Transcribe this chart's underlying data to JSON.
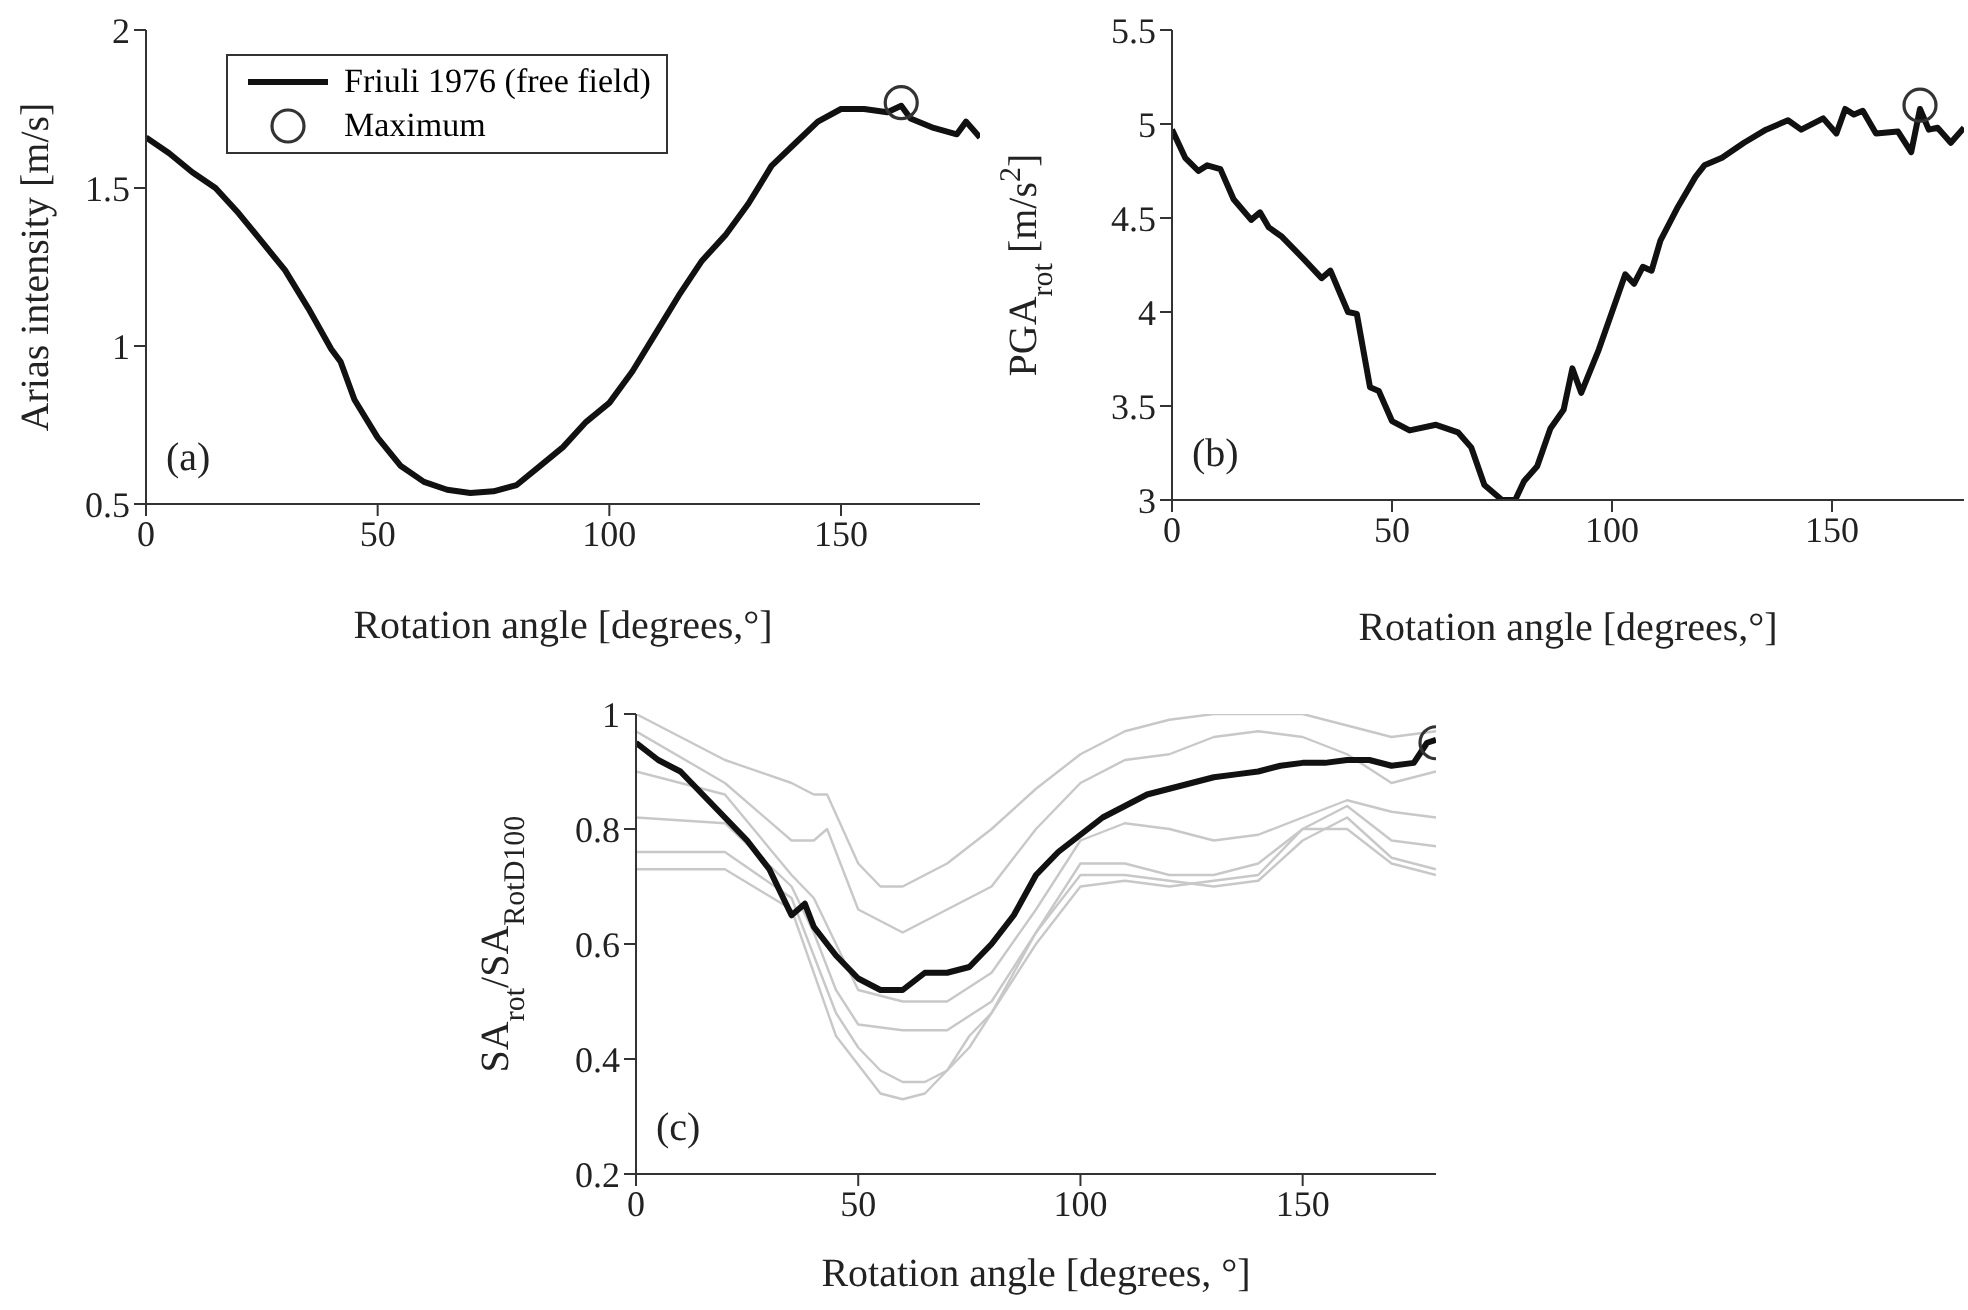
{
  "chart_data": [
    {
      "type": "line",
      "xlabel": "Rotation angle [degrees,°]",
      "ylabel": "Arias intensity [m/s]",
      "annotations": [
        "(a)"
      ],
      "xlim": [
        0,
        180
      ],
      "xticks": [
        0,
        50,
        100,
        150
      ],
      "ylim": [
        0.5,
        2
      ],
      "yticks": [
        0.5,
        1,
        1.5,
        2
      ],
      "legend": "top left",
      "grid": false,
      "series": [
        {
          "name": "Friuli 1976 (free field)",
          "color": "#111111",
          "marker": "none",
          "x": [
            0,
            5,
            10,
            15,
            20,
            25,
            30,
            35,
            40,
            42,
            45,
            50,
            55,
            60,
            65,
            70,
            75,
            80,
            85,
            90,
            95,
            100,
            105,
            110,
            115,
            120,
            125,
            130,
            135,
            140,
            145,
            150,
            155,
            160,
            163,
            165,
            170,
            175,
            177,
            180
          ],
          "values": [
            1.66,
            1.61,
            1.55,
            1.5,
            1.42,
            1.33,
            1.24,
            1.12,
            0.99,
            0.95,
            0.83,
            0.71,
            0.62,
            0.57,
            0.545,
            0.535,
            0.54,
            0.56,
            0.62,
            0.68,
            0.76,
            0.82,
            0.92,
            1.04,
            1.16,
            1.27,
            1.35,
            1.45,
            1.57,
            1.64,
            1.71,
            1.75,
            1.75,
            1.74,
            1.76,
            1.72,
            1.69,
            1.67,
            1.71,
            1.66
          ]
        },
        {
          "name": "Maximum",
          "type": "scatter",
          "marker": "circle",
          "color": "#333333",
          "x": [
            163
          ],
          "values": [
            1.77
          ]
        }
      ]
    },
    {
      "type": "line",
      "xlabel": "Rotation angle [degrees,°]",
      "ylabel": "PGA$_{rot}$ [m/s$^{2}$]",
      "annotations": [
        "(b)"
      ],
      "xlim": [
        0,
        180
      ],
      "xticks": [
        0,
        50,
        100,
        150
      ],
      "ylim": [
        3,
        5.5
      ],
      "yticks": [
        3,
        3.5,
        4,
        4.5,
        5,
        5.5
      ],
      "grid": false,
      "series": [
        {
          "color": "#111111",
          "marker": "none",
          "x": [
            0,
            3,
            6,
            8,
            11,
            14,
            18,
            20,
            22,
            25,
            30,
            34,
            36,
            40,
            42,
            45,
            47,
            50,
            54,
            60,
            65,
            68,
            71,
            75,
            78,
            80,
            83,
            86,
            89,
            91,
            93,
            97,
            100,
            103,
            105,
            107,
            109,
            111,
            115,
            119,
            121,
            125,
            130,
            135,
            140,
            143,
            148,
            151,
            153,
            155,
            157,
            160,
            165,
            168,
            170,
            172,
            174,
            177,
            180
          ],
          "values": [
            4.97,
            4.82,
            4.75,
            4.78,
            4.76,
            4.6,
            4.49,
            4.53,
            4.45,
            4.4,
            4.28,
            4.18,
            4.22,
            4.0,
            3.99,
            3.6,
            3.58,
            3.42,
            3.37,
            3.4,
            3.36,
            3.28,
            3.08,
            3.0,
            3.0,
            3.1,
            3.18,
            3.38,
            3.48,
            3.7,
            3.57,
            3.8,
            4.0,
            4.2,
            4.15,
            4.24,
            4.22,
            4.38,
            4.56,
            4.72,
            4.78,
            4.82,
            4.9,
            4.97,
            5.02,
            4.97,
            5.03,
            4.95,
            5.08,
            5.05,
            5.07,
            4.95,
            4.96,
            4.85,
            5.08,
            4.97,
            4.98,
            4.9,
            4.98
          ]
        },
        {
          "type": "scatter",
          "marker": "circle",
          "color": "#333333",
          "x": [
            170
          ],
          "values": [
            5.1
          ]
        }
      ]
    },
    {
      "type": "line",
      "xlabel": "Rotation angle [degrees, °]",
      "ylabel": "SA$_{rot}$/SA$_{RotD100}$",
      "annotations": [
        "(c)"
      ],
      "xlim": [
        0,
        180
      ],
      "xticks": [
        0,
        50,
        100,
        150
      ],
      "ylim": [
        0.2,
        1
      ],
      "yticks": [
        0.2,
        0.4,
        0.6,
        0.8,
        1
      ],
      "grid": false,
      "series": [
        {
          "color": "#c8c8c8",
          "marker": "none",
          "x": [
            0,
            20,
            35,
            40,
            43,
            50,
            55,
            60,
            70,
            80,
            90,
            100,
            110,
            120,
            130,
            140,
            150,
            160,
            170,
            180
          ],
          "values": [
            1.0,
            0.92,
            0.88,
            0.86,
            0.86,
            0.74,
            0.7,
            0.7,
            0.74,
            0.8,
            0.87,
            0.93,
            0.97,
            0.99,
            1.0,
            1.0,
            1.0,
            0.98,
            0.96,
            0.97
          ]
        },
        {
          "color": "#c8c8c8",
          "marker": "none",
          "x": [
            0,
            20,
            35,
            40,
            43,
            50,
            60,
            70,
            80,
            90,
            100,
            110,
            120,
            130,
            140,
            150,
            160,
            170,
            180
          ],
          "values": [
            0.97,
            0.88,
            0.78,
            0.78,
            0.8,
            0.66,
            0.62,
            0.66,
            0.7,
            0.8,
            0.88,
            0.92,
            0.93,
            0.96,
            0.97,
            0.96,
            0.93,
            0.88,
            0.9
          ]
        },
        {
          "color": "#c8c8c8",
          "marker": "none",
          "x": [
            0,
            20,
            35,
            40,
            45,
            50,
            60,
            70,
            80,
            90,
            100,
            110,
            120,
            130,
            140,
            150,
            160,
            170,
            180
          ],
          "values": [
            0.9,
            0.86,
            0.72,
            0.68,
            0.6,
            0.52,
            0.5,
            0.5,
            0.55,
            0.66,
            0.78,
            0.81,
            0.8,
            0.78,
            0.79,
            0.82,
            0.85,
            0.83,
            0.82
          ]
        },
        {
          "color": "#c8c8c8",
          "marker": "none",
          "x": [
            0,
            20,
            35,
            40,
            45,
            50,
            60,
            70,
            80,
            90,
            100,
            110,
            120,
            130,
            140,
            150,
            160,
            170,
            180
          ],
          "values": [
            0.82,
            0.81,
            0.7,
            0.62,
            0.52,
            0.46,
            0.45,
            0.45,
            0.5,
            0.62,
            0.74,
            0.74,
            0.72,
            0.72,
            0.74,
            0.8,
            0.84,
            0.78,
            0.77
          ]
        },
        {
          "color": "#c8c8c8",
          "marker": "none",
          "x": [
            0,
            20,
            35,
            40,
            45,
            50,
            55,
            60,
            65,
            70,
            75,
            80,
            90,
            100,
            110,
            120,
            130,
            140,
            150,
            160,
            170,
            180
          ],
          "values": [
            0.76,
            0.76,
            0.68,
            0.58,
            0.48,
            0.42,
            0.38,
            0.36,
            0.36,
            0.38,
            0.44,
            0.48,
            0.62,
            0.72,
            0.72,
            0.71,
            0.7,
            0.71,
            0.78,
            0.82,
            0.75,
            0.73
          ]
        },
        {
          "color": "#c8c8c8",
          "marker": "none",
          "x": [
            0,
            20,
            35,
            45,
            55,
            60,
            65,
            75,
            80,
            90,
            100,
            110,
            120,
            130,
            140,
            150,
            160,
            170,
            180
          ],
          "values": [
            0.73,
            0.73,
            0.66,
            0.44,
            0.34,
            0.33,
            0.34,
            0.42,
            0.48,
            0.6,
            0.7,
            0.71,
            0.7,
            0.71,
            0.72,
            0.8,
            0.8,
            0.74,
            0.72
          ]
        },
        {
          "color": "#111111",
          "marker": "none",
          "x": [
            0,
            5,
            10,
            15,
            20,
            25,
            30,
            35,
            38,
            40,
            45,
            50,
            55,
            60,
            65,
            70,
            75,
            80,
            85,
            90,
            95,
            100,
            105,
            110,
            115,
            120,
            125,
            130,
            135,
            140,
            145,
            150,
            155,
            160,
            165,
            170,
            175,
            178,
            180
          ],
          "values": [
            0.95,
            0.92,
            0.9,
            0.86,
            0.82,
            0.78,
            0.73,
            0.65,
            0.67,
            0.63,
            0.58,
            0.54,
            0.52,
            0.52,
            0.55,
            0.55,
            0.56,
            0.6,
            0.65,
            0.72,
            0.76,
            0.79,
            0.82,
            0.84,
            0.86,
            0.87,
            0.88,
            0.89,
            0.895,
            0.9,
            0.91,
            0.915,
            0.915,
            0.92,
            0.92,
            0.91,
            0.915,
            0.95,
            0.955
          ]
        },
        {
          "type": "scatter",
          "marker": "circle",
          "color": "#333333",
          "x": [
            180
          ],
          "values": [
            0.95
          ]
        }
      ]
    }
  ]
}
